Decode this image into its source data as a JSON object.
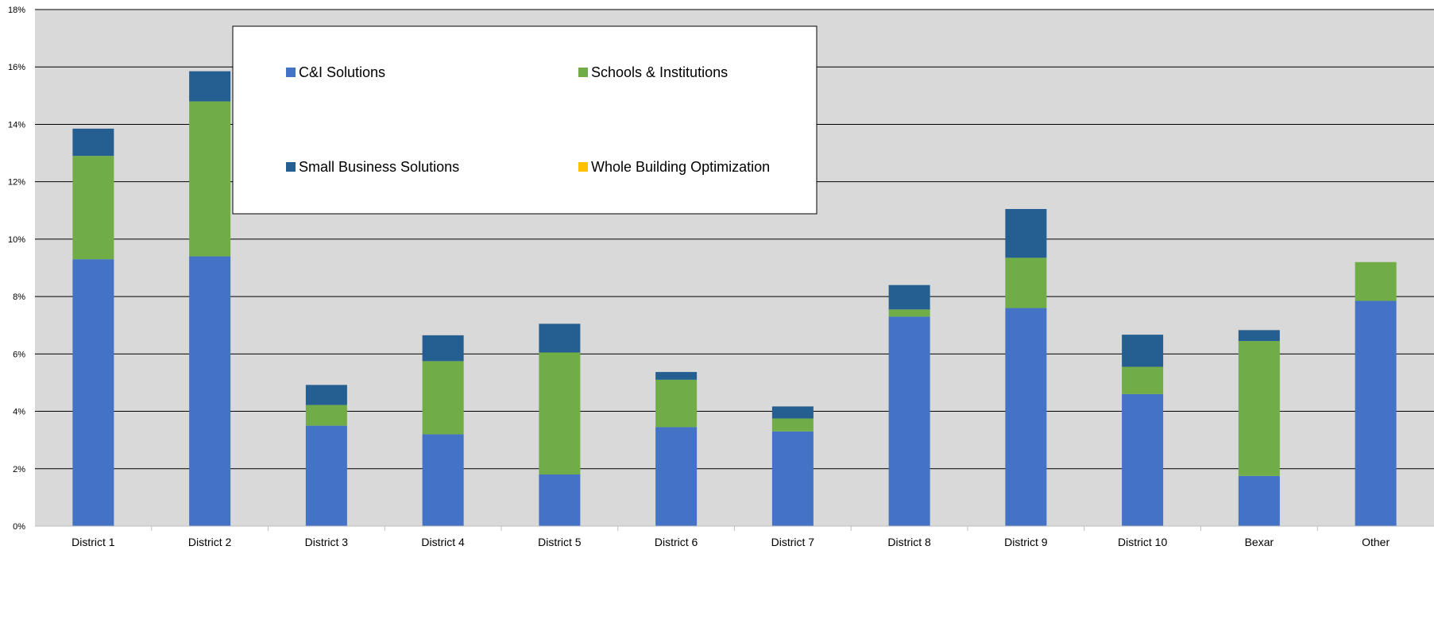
{
  "colors": {
    "c_and_i": "#4472C4",
    "schools": "#70AD47",
    "small_business": "#255E91",
    "whole_building": "#FFC000",
    "plot_background": "#D9D9D9",
    "gridline": "#000000"
  },
  "chart_data": {
    "type": "bar",
    "stacked": true,
    "categories": [
      "District 1",
      "District 2",
      "District 3",
      "District 4",
      "District 5",
      "District 6",
      "District 7",
      "District 8",
      "District 9",
      "District 10",
      "Bexar",
      "Other"
    ],
    "series": [
      {
        "name": "C&I Solutions",
        "color": "#4472C4",
        "values": [
          9.3,
          9.4,
          3.5,
          3.2,
          1.8,
          3.45,
          3.3,
          7.3,
          7.6,
          4.6,
          1.75,
          7.85
        ]
      },
      {
        "name": "Schools & Institutions",
        "color": "#70AD47",
        "values": [
          3.6,
          5.4,
          0.72,
          2.55,
          4.25,
          1.65,
          0.45,
          0.25,
          1.75,
          0.95,
          4.7,
          1.35
        ]
      },
      {
        "name": "Small Business Solutions",
        "color": "#255E91",
        "values": [
          0.95,
          1.05,
          0.7,
          0.9,
          1.0,
          0.27,
          0.42,
          0.85,
          1.7,
          1.12,
          0.38,
          0.0
        ]
      },
      {
        "name": "Whole Building Optimization",
        "color": "#FFC000",
        "values": [
          0,
          0,
          0,
          0,
          0,
          0,
          0,
          0,
          0,
          0,
          0,
          0
        ]
      }
    ],
    "y_ticks": [
      "0%",
      "2%",
      "4%",
      "6%",
      "8%",
      "10%",
      "12%",
      "14%",
      "16%",
      "18%"
    ],
    "ylim": [
      0,
      18
    ],
    "grid": true,
    "legend_position": "top-center (inside plot)"
  }
}
